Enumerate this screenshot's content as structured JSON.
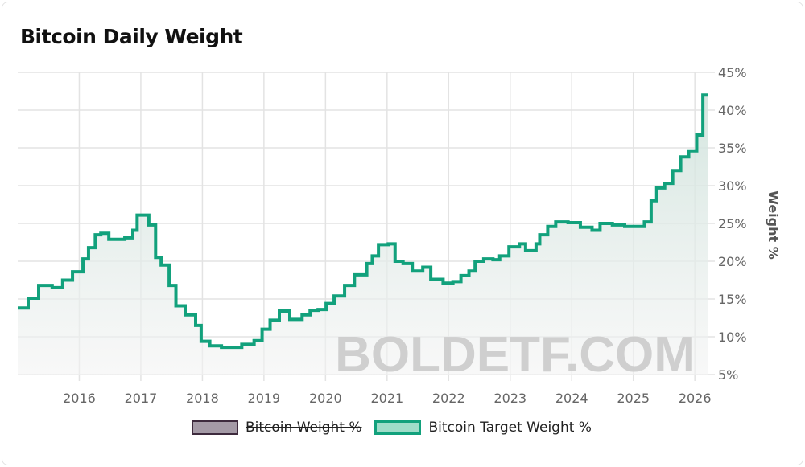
{
  "title": "Bitcoin Daily Weight",
  "watermark": "BOLDETF.COM",
  "chart_data": {
    "type": "area",
    "step": true,
    "title": "Bitcoin Daily Weight",
    "xlabel": "",
    "ylabel": "Weight %",
    "xlim": [
      2015.0,
      2026.22
    ],
    "ylim": [
      5,
      45
    ],
    "x_ticks": [
      "2016",
      "2017",
      "2018",
      "2019",
      "2020",
      "2021",
      "2022",
      "2023",
      "2024",
      "2025",
      "2026"
    ],
    "y_ticks": [
      "5%",
      "10%",
      "15%",
      "20%",
      "25%",
      "30%",
      "35%",
      "40%",
      "45%"
    ],
    "y_axis_side": "right",
    "grid": true,
    "legend_placement": "bottom",
    "legend": [
      {
        "name": "Bitcoin Weight %",
        "hidden": true,
        "color": "#a49aa6",
        "border": "#3d2a3d"
      },
      {
        "name": "Bitcoin Target Weight %",
        "hidden": false,
        "color": "#9fddc9",
        "border": "#12a17c"
      }
    ],
    "series": [
      {
        "name": "Bitcoin Target Weight %",
        "color": "#12a17c",
        "x": [
          2015.0,
          2015.17,
          2015.34,
          2015.56,
          2015.73,
          2015.89,
          2016.06,
          2016.15,
          2016.26,
          2016.35,
          2016.48,
          2016.74,
          2016.87,
          2016.94,
          2017.07,
          2017.13,
          2017.24,
          2017.33,
          2017.46,
          2017.57,
          2017.72,
          2017.89,
          2017.98,
          2018.12,
          2018.31,
          2018.51,
          2018.64,
          2018.84,
          2018.97,
          2019.1,
          2019.25,
          2019.42,
          2019.62,
          2019.75,
          2019.88,
          2020.01,
          2020.14,
          2020.31,
          2020.47,
          2020.67,
          2020.76,
          2020.86,
          2021.02,
          2021.13,
          2021.26,
          2021.41,
          2021.58,
          2021.71,
          2021.91,
          2022.07,
          2022.2,
          2022.33,
          2022.43,
          2022.57,
          2022.72,
          2022.83,
          2022.98,
          2023.15,
          2023.25,
          2023.42,
          2023.48,
          2023.61,
          2023.74,
          2023.94,
          2024.14,
          2024.33,
          2024.46,
          2024.66,
          2024.86,
          2025.05,
          2025.18,
          2025.29,
          2025.38,
          2025.51,
          2025.64,
          2025.77,
          2025.9,
          2026.03,
          2026.13,
          2026.22
        ],
        "values": [
          13.8,
          15.1,
          16.8,
          16.5,
          17.5,
          18.6,
          20.3,
          21.8,
          23.5,
          23.7,
          22.9,
          23.1,
          24.1,
          26.1,
          26.1,
          24.8,
          20.5,
          19.5,
          16.8,
          14.1,
          12.9,
          11.5,
          9.4,
          8.8,
          8.6,
          8.6,
          9.0,
          9.5,
          11.0,
          12.2,
          13.4,
          12.3,
          12.9,
          13.5,
          13.6,
          14.4,
          15.4,
          16.8,
          18.2,
          19.7,
          20.7,
          22.2,
          22.3,
          20.0,
          19.7,
          18.7,
          19.2,
          17.6,
          17.1,
          17.3,
          18.1,
          18.7,
          20.0,
          20.3,
          20.2,
          20.7,
          21.9,
          22.3,
          21.4,
          22.3,
          23.5,
          24.6,
          25.2,
          25.1,
          24.5,
          24.1,
          25.0,
          24.8,
          24.6,
          24.6,
          25.2,
          28.0,
          29.7,
          30.3,
          32.0,
          33.8,
          34.6,
          36.7,
          42.0,
          42.0
        ]
      }
    ]
  }
}
